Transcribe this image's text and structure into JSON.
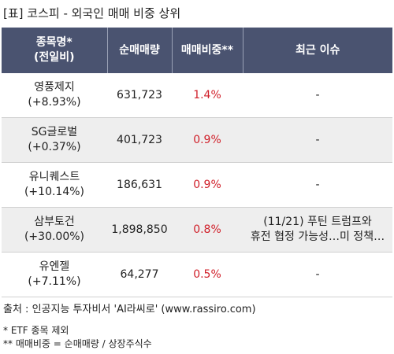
{
  "title": "[표] 코스피 - 외국인 매매 비중 상위",
  "table": {
    "headers": {
      "stock_line1": "종목명*",
      "stock_line2": "(전일비)",
      "net_volume": "순매매량",
      "ratio": "매매비중**",
      "issue": "최근 이슈"
    },
    "rows": [
      {
        "name": "영풍제지",
        "change": "(+8.93%)",
        "net_volume": "631,723",
        "ratio": "1.4%",
        "issue_line1": "-",
        "issue_line2": ""
      },
      {
        "name": "SG글로벌",
        "change": "(+0.37%)",
        "net_volume": "401,723",
        "ratio": "0.9%",
        "issue_line1": "-",
        "issue_line2": ""
      },
      {
        "name": "유니퀘스트",
        "change": "(+10.14%)",
        "net_volume": "186,631",
        "ratio": "0.9%",
        "issue_line1": "-",
        "issue_line2": ""
      },
      {
        "name": "삼부토건",
        "change": "(+30.00%)",
        "net_volume": "1,898,850",
        "ratio": "0.8%",
        "issue_line1": "(11/21) 푸틴 트럼프와",
        "issue_line2": "휴전 협정 가능성…미 정책…"
      },
      {
        "name": "유엔젤",
        "change": "(+7.11%)",
        "net_volume": "64,277",
        "ratio": "0.5%",
        "issue_line1": "-",
        "issue_line2": ""
      }
    ]
  },
  "source": "출처 : 인공지능 투자비서 'AI라씨로' (www.rassiro.com)",
  "notes": {
    "note1": "* ETF 종목 제외",
    "note2": "** 매매비중 = 순매매량 / 상장주식수"
  },
  "colors": {
    "header_bg": "#4a5370",
    "ratio_text": "#d0202a",
    "alt_row_bg": "#eeeeee"
  }
}
